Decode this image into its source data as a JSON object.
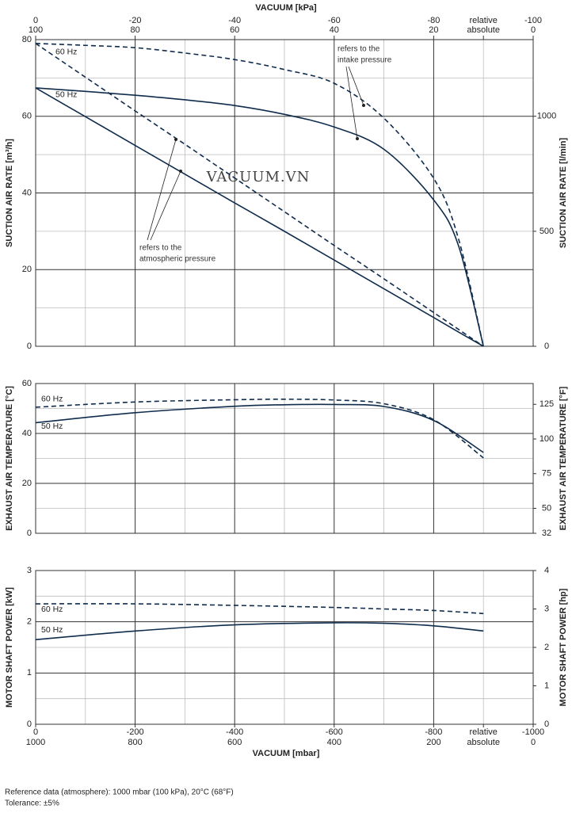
{
  "chart_data": [
    {
      "type": "line",
      "y_label": "SUCTION AIR RATE  [m³/h]",
      "y2_label": "SUCTION AIR RATE  [l/min]",
      "x2_label": "VACUUM  [kPa]",
      "x2lim": [
        0,
        -100
      ],
      "x2ticks": [
        0,
        -20,
        -40,
        -60,
        -80,
        {
          "value": -90,
          "label": "relative"
        },
        -100
      ],
      "x2ticks_absolute": [
        {
          "value": 0,
          "label": "100"
        },
        {
          "value": -20,
          "label": "80"
        },
        {
          "value": -40,
          "label": "60"
        },
        {
          "value": -60,
          "label": "40"
        },
        {
          "value": -80,
          "label": "20"
        },
        {
          "value": -90,
          "label": "absolute"
        },
        {
          "value": -100,
          "label": "0"
        }
      ],
      "xlim": [
        0,
        -1000
      ],
      "ylim": [
        0,
        80
      ],
      "yticks": [
        0,
        20,
        40,
        60,
        80
      ],
      "minor_yticks": [
        10,
        30,
        50,
        70
      ],
      "y2lim": [
        0,
        1333.3
      ],
      "y2ticks": [
        0,
        500,
        1000
      ],
      "grid": true,
      "x": [
        0,
        -100,
        -200,
        -300,
        -400,
        -500,
        -600,
        -700,
        -800,
        -850,
        -900
      ],
      "series": [
        {
          "name": "60 Hz",
          "color": "#0f2c4c",
          "dash": true,
          "values": [
            79,
            78.5,
            77.9,
            76.5,
            74.8,
            72.2,
            68.6,
            59.5,
            43.8,
            28,
            0
          ]
        },
        {
          "name": "50 Hz",
          "color": "#0f2c4c",
          "dash": false,
          "values": [
            67.4,
            66.5,
            65.5,
            64.3,
            62.8,
            60.5,
            57.2,
            51.4,
            38.2,
            26.2,
            0
          ]
        },
        {
          "color": "#0f2c4c",
          "dash": true,
          "values": [
            79,
            70.2,
            61.4,
            52.7,
            43.9,
            35.1,
            26.3,
            17.6,
            8.8,
            4.4,
            0
          ]
        },
        {
          "color": "#0f2c4c",
          "dash": false,
          "values": [
            67.4,
            59.9,
            52.4,
            44.9,
            37.4,
            30,
            22.5,
            15,
            7.5,
            3.7,
            0
          ]
        }
      ],
      "annotations": [
        [
          "refers to the",
          "intake pressure"
        ],
        [
          "refers to the",
          "atmospheric pressure"
        ]
      ],
      "watermark": "VACUUM.VN"
    },
    {
      "type": "line",
      "y_label": "EXHAUST AIR TEMPERATURE  [°C]",
      "y2_label": "EXHAUST AIR TEMPERATURE  [°F]",
      "xlim": [
        0,
        -1000
      ],
      "ylim": [
        0,
        60
      ],
      "yticks": [
        0,
        20,
        40,
        60
      ],
      "minor_yticks": [
        10,
        30,
        50
      ],
      "y2lim": [
        32,
        140
      ],
      "y2ticks": [
        32,
        50,
        75,
        100,
        125
      ],
      "grid": true,
      "x": [
        0,
        -200,
        -400,
        -500,
        -600,
        -700,
        -800,
        -900
      ],
      "series": [
        {
          "name": "60 Hz",
          "color": "#0f2c4c",
          "dash": true,
          "values": [
            50.5,
            52.6,
            53.5,
            53.7,
            53.4,
            51.9,
            45.5,
            30.2
          ]
        },
        {
          "name": "50 Hz",
          "color": "#0f2c4c",
          "dash": false,
          "values": [
            44.3,
            48.3,
            50.9,
            51.5,
            51.6,
            50.8,
            45.2,
            32.4
          ]
        }
      ]
    },
    {
      "type": "line",
      "y_label": "MOTOR SHAFT POWER  [kW]",
      "y2_label": "MOTOR SHAFT POWER  [hp]",
      "x_label": "VACUUM  [mbar]",
      "xlim": [
        0,
        -1000
      ],
      "xticks": [
        0,
        -200,
        -400,
        -600,
        -800,
        {
          "value": -900,
          "label": "relative"
        },
        -1000
      ],
      "minor_xticks": [
        -100,
        -300,
        -500,
        -700
      ],
      "xticks_absolute": [
        {
          "value": 0,
          "label": "1000"
        },
        {
          "value": -200,
          "label": "800"
        },
        {
          "value": -400,
          "label": "600"
        },
        {
          "value": -600,
          "label": "400"
        },
        {
          "value": -800,
          "label": "200"
        },
        {
          "value": -900,
          "label": "absolute"
        },
        {
          "value": -1000,
          "label": "0"
        }
      ],
      "ylim": [
        0,
        3
      ],
      "yticks": [
        0,
        1,
        2,
        3
      ],
      "minor_yticks": [
        0.5,
        1.5,
        2.5
      ],
      "y2lim": [
        0,
        4
      ],
      "y2ticks": [
        0,
        1,
        2,
        3,
        4
      ],
      "grid": true,
      "x": [
        0,
        -200,
        -400,
        -600,
        -700,
        -800,
        -900
      ],
      "series": [
        {
          "name": "60 Hz",
          "color": "#0f2c4c",
          "dash": true,
          "values": [
            2.35,
            2.35,
            2.32,
            2.28,
            2.25,
            2.22,
            2.16
          ]
        },
        {
          "name": "50 Hz",
          "color": "#0f2c4c",
          "dash": false,
          "values": [
            1.65,
            1.82,
            1.94,
            1.98,
            1.97,
            1.92,
            1.82
          ]
        }
      ]
    }
  ],
  "footnotes": [
    "Reference data (atmosphere): 1000 mbar (100 kPa), 20°C (68°F)",
    "Tolerance: ±5%"
  ]
}
